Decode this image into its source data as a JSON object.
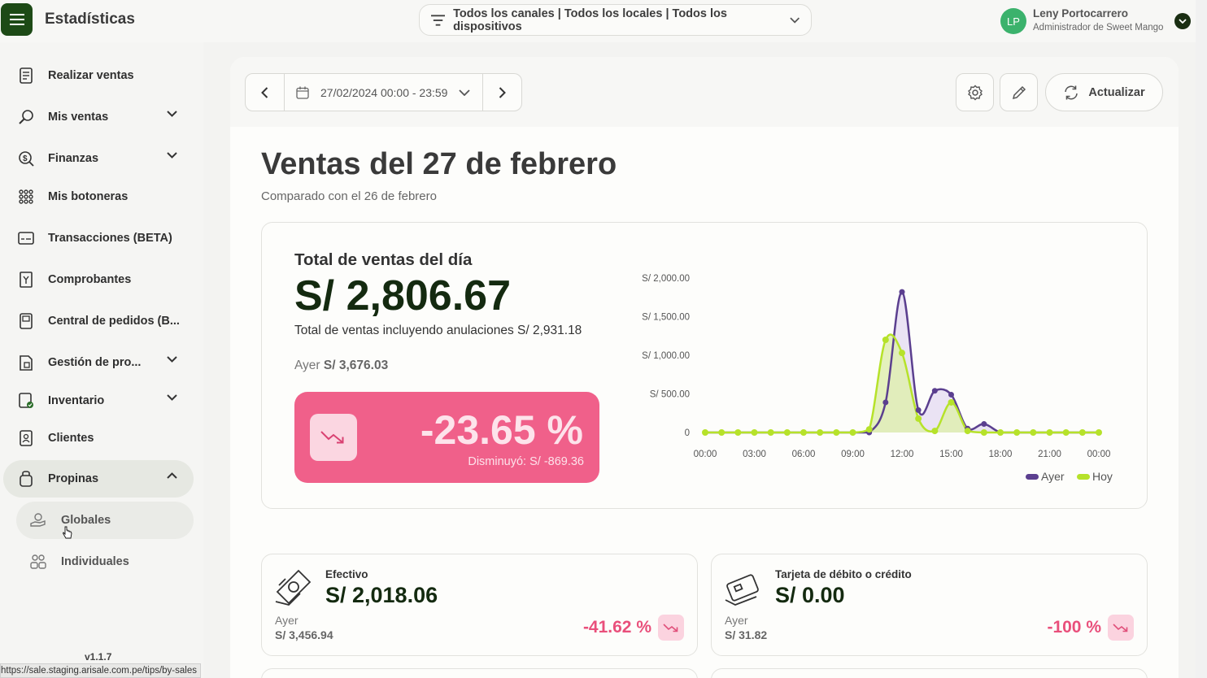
{
  "header": {
    "title": "Estadísticas",
    "filter_text": "Todos los canales | Todos los locales | Todos los dispositivos",
    "user": {
      "initials": "LP",
      "name": "Leny Portocarrero",
      "role": "Administrador de Sweet Mango"
    }
  },
  "sidebar": {
    "items": [
      {
        "label": "Realizar ventas",
        "icon": "receipt-icon"
      },
      {
        "label": "Mis ventas",
        "icon": "search-money-icon",
        "expandable": true
      },
      {
        "label": "Finanzas",
        "icon": "finance-icon",
        "expandable": true
      },
      {
        "label": "Mis botoneras",
        "icon": "grid-icon"
      },
      {
        "label": "Transacciones (BETA)",
        "icon": "terminal-icon"
      },
      {
        "label": "Comprobantes",
        "icon": "voucher-icon"
      },
      {
        "label": "Central de pedidos (B...",
        "icon": "orders-icon"
      },
      {
        "label": "Gestión de pro...",
        "icon": "product-icon",
        "expandable": true
      },
      {
        "label": "Inventario",
        "icon": "inventory-icon",
        "expandable": true
      },
      {
        "label": "Clientes",
        "icon": "clients-icon"
      },
      {
        "label": "Propinas",
        "icon": "tips-icon",
        "expandable": true,
        "expanded": true
      }
    ],
    "sub_items": [
      {
        "label": "Globales",
        "icon": "hand-coin-icon"
      },
      {
        "label": "Individuales",
        "icon": "users-icon"
      }
    ],
    "version": "v1.1.7"
  },
  "status_url": "https://sale.staging.arisale.com.pe/tips/by-sales",
  "toolbar": {
    "date_range": "27/02/2024 00:00 - 23:59",
    "refresh_label": "Actualizar"
  },
  "page": {
    "title": "Ventas del 27 de febrero",
    "subtitle": "Comparado con el 26 de febrero"
  },
  "summary": {
    "label": "Total de ventas del día",
    "total": "S/ 2,806.67",
    "including_cancellations": "Total de ventas incluyendo anulaciones S/ 2,931.18",
    "yesterday_label": "Ayer",
    "yesterday_value": "S/ 3,676.03",
    "change_pct": "-23.65 %",
    "change_note": "Disminuyó: S/ -869.36"
  },
  "chart_data": {
    "type": "line",
    "x": [
      "00:00",
      "01:00",
      "02:00",
      "03:00",
      "04:00",
      "05:00",
      "06:00",
      "07:00",
      "08:00",
      "09:00",
      "10:00",
      "11:00",
      "12:00",
      "13:00",
      "14:00",
      "15:00",
      "16:00",
      "17:00",
      "18:00",
      "19:00",
      "20:00",
      "21:00",
      "22:00",
      "23:00",
      "00:00"
    ],
    "x_tick_labels": [
      "00:00",
      "03:00",
      "06:00",
      "09:00",
      "12:00",
      "15:00",
      "18:00",
      "21:00",
      "00:00"
    ],
    "y_tick_labels": [
      "S/ 2,000.00",
      "S/ 1,500.00",
      "S/ 1,000.00",
      "S/ 500.00",
      "0"
    ],
    "ylim": [
      0,
      2000
    ],
    "series": [
      {
        "name": "Ayer",
        "color": "#5b3f8f",
        "values": [
          0,
          0,
          0,
          0,
          0,
          0,
          0,
          0,
          0,
          0,
          0,
          390,
          1820,
          290,
          540,
          490,
          50,
          110,
          0,
          0,
          0,
          0,
          0,
          0,
          0
        ]
      },
      {
        "name": "Hoy",
        "color": "#b6e22a",
        "values": [
          0,
          0,
          0,
          0,
          0,
          0,
          0,
          0,
          0,
          0,
          40,
          1200,
          1030,
          180,
          20,
          390,
          20,
          0,
          0,
          0,
          0,
          0,
          0,
          0,
          0
        ]
      }
    ],
    "legend": "bottom-right",
    "fill": "#dfeeb0",
    "fill_alt": "#e5dcf3"
  },
  "payments": [
    {
      "name": "Efectivo",
      "amount": "S/ 2,018.06",
      "yesterday_label": "Ayer",
      "yesterday_value": "S/ 3,456.94",
      "pct": "-41.62 %",
      "icon": "cash-icon"
    },
    {
      "name": "Tarjeta de débito o crédito",
      "amount": "S/ 0.00",
      "yesterday_label": "Ayer",
      "yesterday_value": "S/ 31.82",
      "pct": "-100 %",
      "icon": "credit-card-icon"
    }
  ]
}
